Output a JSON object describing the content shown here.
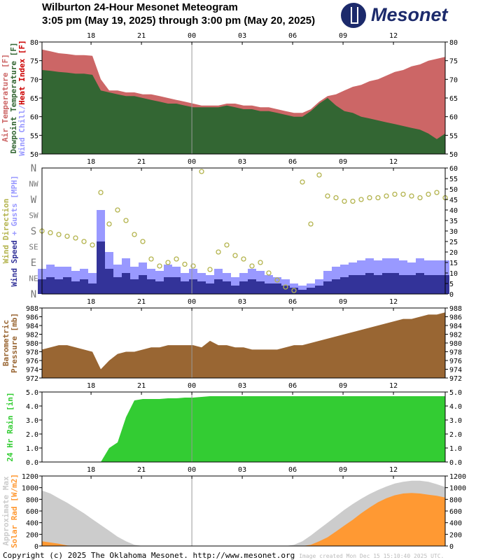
{
  "header": {
    "title": "Wilburton 24-Hour Mesonet Meteogram",
    "subtitle": "3:05 pm (May 19, 2025) through 3:00 pm (May 20, 2025)",
    "logo_text": "Mesonet"
  },
  "footer": {
    "copyright": "Copyright (c) 2025 The Oklahoma Mesonet. http://www.mesonet.org",
    "created": "Image created Mon Dec 15 15:10:40 2025 UTC."
  },
  "colors": {
    "air": "#cc6666",
    "dew": "#336633",
    "chill": "#9999ff",
    "heat": "#cc0000",
    "wind": "#333399",
    "gust": "#9999ff",
    "dir": "#b3b34d",
    "pressure": "#996633",
    "rain": "#33cc33",
    "solar": "#ff9933",
    "maxsolar": "#cccccc",
    "grey": "#999999"
  },
  "chart_data": {
    "type": "line",
    "x_start": "15:05",
    "x_step_minutes": 30,
    "x_ticks": [
      "18",
      "21",
      "00",
      "03",
      "06",
      "09",
      "12"
    ],
    "x_tick_hours": [
      2.92,
      5.92,
      8.92,
      11.92,
      14.92,
      17.92,
      20.92
    ],
    "panels": [
      {
        "id": "temp",
        "ylim": [
          50,
          80
        ],
        "yticks": [
          "50",
          "55",
          "60",
          "65",
          "70",
          "75",
          "80"
        ],
        "ytick_values": [
          50,
          55,
          60,
          65,
          70,
          75,
          80
        ],
        "ylabels": [
          [
            "Air Temperature [F]",
            "air"
          ],
          [
            "Dewpoint Temperature [F]",
            "dew"
          ],
          [
            "Wind Chill/",
            "chill"
          ],
          [
            "Heat Index [F]",
            "heat"
          ]
        ],
        "series": [
          {
            "name": "Air Temperature",
            "values": [
              78,
              77.5,
              77,
              76.8,
              76.5,
              76.5,
              76.3,
              70,
              67,
              67,
              66.5,
              66.5,
              66,
              66,
              65.5,
              65,
              64.5,
              64,
              63.5,
              63,
              63,
              63,
              63.5,
              63.5,
              63,
              63,
              62.5,
              62.5,
              62,
              61.5,
              61,
              61,
              62,
              64,
              65.5,
              66,
              67,
              68,
              68.5,
              69.5,
              70,
              71,
              72,
              72.5,
              73.5,
              74,
              75,
              75.5,
              76
            ]
          },
          {
            "name": "Dewpoint Temperature",
            "values": [
              72.5,
              72.3,
              72,
              71.8,
              71.5,
              71.5,
              71.2,
              67,
              66.5,
              66,
              65.5,
              65.5,
              65,
              64.5,
              64,
              63.5,
              63.5,
              63,
              62.5,
              62.5,
              62.5,
              62.5,
              63,
              62.5,
              62,
              62,
              61.5,
              61.5,
              61,
              60.5,
              60,
              60,
              61.5,
              63.5,
              65,
              63,
              61.5,
              61,
              60,
              59.5,
              59,
              58.5,
              58,
              57.5,
              57,
              56.5,
              55.5,
              54,
              55.5
            ]
          }
        ]
      },
      {
        "id": "wind",
        "ylim": [
          0,
          60
        ],
        "yticks": [
          "0",
          "5",
          "10",
          "15",
          "20",
          "25",
          "30",
          "35",
          "40",
          "45",
          "50",
          "55",
          "60"
        ],
        "ytick_values": [
          0,
          5,
          10,
          15,
          20,
          25,
          30,
          35,
          40,
          45,
          50,
          55,
          60
        ],
        "dir_ticks": [
          "N",
          "NE",
          "E",
          "SE",
          "S",
          "SW",
          "W",
          "NW",
          "N"
        ],
        "ylabels": [
          [
            "Wind Direction",
            "dir"
          ],
          [
            "Wind Speed",
            "wind"
          ],
          [
            " + Gusts [MPH]",
            "gust"
          ]
        ],
        "series": [
          {
            "name": "Wind Speed",
            "values": [
              7,
              8,
              7,
              8,
              6,
              7,
              5,
              25,
              12,
              8,
              10,
              7,
              9,
              7,
              6,
              8,
              8,
              6,
              7,
              6,
              5,
              7,
              6,
              4,
              6,
              7,
              6,
              5,
              5,
              4,
              3,
              2,
              3,
              4,
              6,
              7,
              8,
              9,
              9,
              10,
              9,
              10,
              10,
              9,
              9,
              10,
              9,
              9,
              9
            ]
          },
          {
            "name": "Gusts",
            "values": [
              12,
              14,
              13,
              13,
              11,
              12,
              10,
              40,
              20,
              14,
              17,
              13,
              15,
              12,
              11,
              14,
              13,
              10,
              12,
              10,
              9,
              12,
              10,
              8,
              10,
              12,
              11,
              9,
              8,
              7,
              5,
              4,
              5,
              7,
              11,
              13,
              14,
              15,
              16,
              17,
              16,
              17,
              17,
              16,
              15,
              17,
              16,
              16,
              16
            ]
          },
          {
            "name": "Wind Direction (deg)",
            "values": [
              180,
              175,
              170,
              165,
              160,
              150,
              140,
              290,
              200,
              240,
              210,
              170,
              150,
              100,
              80,
              90,
              100,
              85,
              80,
              350,
              70,
              120,
              140,
              110,
              100,
              80,
              90,
              60,
              40,
              20,
              10,
              320,
              200,
              340,
              280,
              275,
              265,
              265,
              270,
              275,
              275,
              280,
              285,
              285,
              280,
              275,
              285,
              290,
              275
            ]
          }
        ]
      },
      {
        "id": "pressure",
        "ylim": [
          972,
          988
        ],
        "yticks": [
          "972",
          "974",
          "976",
          "978",
          "980",
          "982",
          "984",
          "986",
          "988"
        ],
        "ytick_values": [
          972,
          974,
          976,
          978,
          980,
          982,
          984,
          986,
          988
        ],
        "ylabels": [
          [
            "Barometric",
            "pressure"
          ],
          [
            "Pressure [mb]",
            "pressure"
          ]
        ],
        "series": [
          {
            "name": "Barometric Pressure",
            "values": [
              978.5,
              979,
              979.5,
              979.5,
              979,
              978.5,
              978,
              974,
              976,
              977.5,
              978,
              978,
              978.5,
              979,
              979,
              979.5,
              979.5,
              979.5,
              979.5,
              979,
              980.5,
              979.5,
              979.5,
              979,
              979,
              978.5,
              978.5,
              978.5,
              978.5,
              979,
              979.5,
              979.5,
              980,
              980.5,
              981,
              981.5,
              982,
              982.5,
              983,
              983.5,
              984,
              984.5,
              985,
              985.5,
              985.5,
              986,
              986.5,
              986.5,
              987
            ]
          }
        ]
      },
      {
        "id": "rain",
        "ylim": [
          0,
          5
        ],
        "yticks": [
          "0.0",
          "1.0",
          "2.0",
          "3.0",
          "4.0",
          "5.0"
        ],
        "ytick_values": [
          0,
          1,
          2,
          3,
          4,
          5
        ],
        "ylabels": [
          [
            "24 Hr Rain [in]",
            "rain"
          ]
        ],
        "series": [
          {
            "name": "24 Hr Rain",
            "values": [
              0,
              0,
              0,
              0,
              0,
              0,
              0,
              0,
              1.0,
              1.4,
              3.2,
              4.4,
              4.5,
              4.5,
              4.5,
              4.55,
              4.55,
              4.6,
              4.6,
              4.65,
              4.7,
              4.7,
              4.7,
              4.7,
              4.7,
              4.7,
              4.7,
              4.7,
              4.7,
              4.7,
              4.7,
              4.7,
              4.7,
              4.7,
              4.7,
              4.7,
              4.7,
              4.7,
              4.7,
              4.7,
              4.7,
              4.7,
              4.7,
              4.7,
              4.7,
              4.7,
              4.7,
              4.7,
              4.7
            ]
          }
        ]
      },
      {
        "id": "solar",
        "ylim": [
          0,
          1200
        ],
        "yticks": [
          "0",
          "200",
          "400",
          "600",
          "800",
          "1000",
          "1200"
        ],
        "ytick_values": [
          0,
          200,
          400,
          600,
          800,
          1000,
          1200
        ],
        "ylabels": [
          [
            "Approximate Max",
            "maxsolar"
          ],
          [
            "Solar Rad [W/m2]",
            "solar"
          ]
        ],
        "series": [
          {
            "name": "Approximate Max",
            "values": [
              950,
              900,
              820,
              740,
              650,
              560,
              460,
              360,
              260,
              160,
              80,
              20,
              0,
              0,
              0,
              0,
              0,
              0,
              0,
              0,
              0,
              0,
              0,
              0,
              0,
              0,
              0,
              0,
              0,
              0,
              20,
              80,
              180,
              290,
              400,
              510,
              620,
              720,
              810,
              890,
              960,
              1020,
              1070,
              1100,
              1120,
              1120,
              1100,
              1060,
              1010
            ]
          },
          {
            "name": "Solar Rad",
            "values": [
              80,
              60,
              40,
              10,
              0,
              0,
              0,
              0,
              0,
              0,
              0,
              0,
              0,
              0,
              0,
              0,
              0,
              0,
              0,
              0,
              0,
              0,
              0,
              0,
              0,
              0,
              0,
              0,
              0,
              0,
              0,
              0,
              20,
              80,
              150,
              250,
              350,
              450,
              560,
              660,
              750,
              820,
              870,
              900,
              910,
              900,
              880,
              860,
              830
            ]
          }
        ]
      }
    ]
  }
}
